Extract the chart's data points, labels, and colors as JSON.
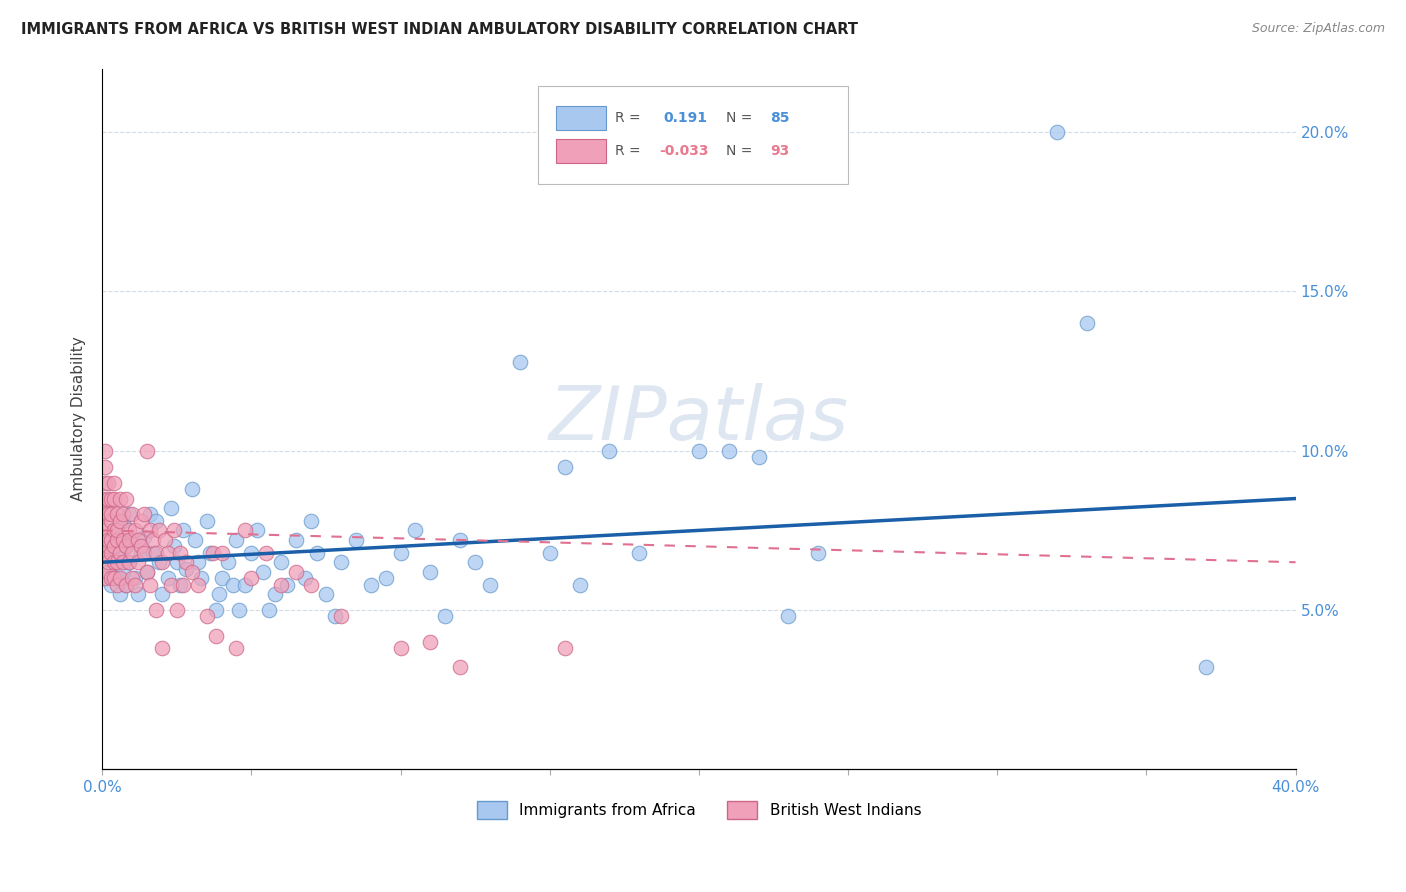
{
  "title": "IMMIGRANTS FROM AFRICA VS BRITISH WEST INDIAN AMBULATORY DISABILITY CORRELATION CHART",
  "source": "Source: ZipAtlas.com",
  "ylabel": "Ambulatory Disability",
  "xlim": [
    0,
    0.4
  ],
  "ylim": [
    0,
    0.22
  ],
  "xticks": [
    0.0,
    0.05,
    0.1,
    0.15,
    0.2,
    0.25,
    0.3,
    0.35,
    0.4
  ],
  "yticks": [
    0.0,
    0.05,
    0.1,
    0.15,
    0.2
  ],
  "africa_color": "#a8c8f0",
  "africa_edge": "#6699cc",
  "bwi_color": "#f0a0b8",
  "bwi_edge": "#cc6688",
  "africa_line_color": "#1a5fa8",
  "bwi_line_color": "#e07090",
  "watermark": "ZIPatlas",
  "legend_label_africa": "Immigrants from Africa",
  "legend_label_bwi": "British West Indians",
  "africa_line_x0": 0.0,
  "africa_line_y0": 0.065,
  "africa_line_x1": 0.4,
  "africa_line_y1": 0.085,
  "bwi_line_x0": 0.0,
  "bwi_line_y0": 0.075,
  "bwi_line_x1": 0.4,
  "bwi_line_y1": 0.065,
  "africa_scatter": [
    [
      0.001,
      0.068
    ],
    [
      0.002,
      0.063
    ],
    [
      0.003,
      0.072
    ],
    [
      0.003,
      0.058
    ],
    [
      0.004,
      0.075
    ],
    [
      0.004,
      0.065
    ],
    [
      0.005,
      0.072
    ],
    [
      0.005,
      0.06
    ],
    [
      0.005,
      0.068
    ],
    [
      0.006,
      0.055
    ],
    [
      0.007,
      0.078
    ],
    [
      0.007,
      0.062
    ],
    [
      0.008,
      0.07
    ],
    [
      0.008,
      0.058
    ],
    [
      0.009,
      0.08
    ],
    [
      0.009,
      0.065
    ],
    [
      0.01,
      0.072
    ],
    [
      0.011,
      0.06
    ],
    [
      0.012,
      0.055
    ],
    [
      0.013,
      0.068
    ],
    [
      0.014,
      0.073
    ],
    [
      0.015,
      0.062
    ],
    [
      0.016,
      0.08
    ],
    [
      0.017,
      0.068
    ],
    [
      0.018,
      0.078
    ],
    [
      0.019,
      0.065
    ],
    [
      0.02,
      0.055
    ],
    [
      0.022,
      0.06
    ],
    [
      0.023,
      0.082
    ],
    [
      0.024,
      0.07
    ],
    [
      0.025,
      0.065
    ],
    [
      0.026,
      0.058
    ],
    [
      0.027,
      0.075
    ],
    [
      0.028,
      0.063
    ],
    [
      0.03,
      0.088
    ],
    [
      0.031,
      0.072
    ],
    [
      0.032,
      0.065
    ],
    [
      0.033,
      0.06
    ],
    [
      0.035,
      0.078
    ],
    [
      0.036,
      0.068
    ],
    [
      0.038,
      0.05
    ],
    [
      0.039,
      0.055
    ],
    [
      0.04,
      0.06
    ],
    [
      0.042,
      0.065
    ],
    [
      0.044,
      0.058
    ],
    [
      0.045,
      0.072
    ],
    [
      0.046,
      0.05
    ],
    [
      0.048,
      0.058
    ],
    [
      0.05,
      0.068
    ],
    [
      0.052,
      0.075
    ],
    [
      0.054,
      0.062
    ],
    [
      0.056,
      0.05
    ],
    [
      0.058,
      0.055
    ],
    [
      0.06,
      0.065
    ],
    [
      0.062,
      0.058
    ],
    [
      0.065,
      0.072
    ],
    [
      0.068,
      0.06
    ],
    [
      0.07,
      0.078
    ],
    [
      0.072,
      0.068
    ],
    [
      0.075,
      0.055
    ],
    [
      0.078,
      0.048
    ],
    [
      0.08,
      0.065
    ],
    [
      0.085,
      0.072
    ],
    [
      0.09,
      0.058
    ],
    [
      0.095,
      0.06
    ],
    [
      0.1,
      0.068
    ],
    [
      0.105,
      0.075
    ],
    [
      0.11,
      0.062
    ],
    [
      0.115,
      0.048
    ],
    [
      0.12,
      0.072
    ],
    [
      0.125,
      0.065
    ],
    [
      0.13,
      0.058
    ],
    [
      0.14,
      0.128
    ],
    [
      0.15,
      0.068
    ],
    [
      0.155,
      0.095
    ],
    [
      0.16,
      0.058
    ],
    [
      0.17,
      0.1
    ],
    [
      0.18,
      0.068
    ],
    [
      0.2,
      0.1
    ],
    [
      0.21,
      0.1
    ],
    [
      0.22,
      0.098
    ],
    [
      0.23,
      0.048
    ],
    [
      0.24,
      0.068
    ],
    [
      0.32,
      0.2
    ],
    [
      0.33,
      0.14
    ],
    [
      0.37,
      0.032
    ]
  ],
  "bwi_scatter": [
    [
      0.0,
      0.075
    ],
    [
      0.0,
      0.085
    ],
    [
      0.001,
      0.068
    ],
    [
      0.001,
      0.095
    ],
    [
      0.001,
      0.1
    ],
    [
      0.001,
      0.08
    ],
    [
      0.001,
      0.09
    ],
    [
      0.001,
      0.068
    ],
    [
      0.001,
      0.075
    ],
    [
      0.001,
      0.06
    ],
    [
      0.002,
      0.085
    ],
    [
      0.002,
      0.07
    ],
    [
      0.002,
      0.08
    ],
    [
      0.002,
      0.062
    ],
    [
      0.002,
      0.09
    ],
    [
      0.002,
      0.072
    ],
    [
      0.002,
      0.065
    ],
    [
      0.003,
      0.078
    ],
    [
      0.003,
      0.068
    ],
    [
      0.003,
      0.085
    ],
    [
      0.003,
      0.072
    ],
    [
      0.003,
      0.06
    ],
    [
      0.003,
      0.08
    ],
    [
      0.004,
      0.075
    ],
    [
      0.004,
      0.065
    ],
    [
      0.004,
      0.085
    ],
    [
      0.004,
      0.07
    ],
    [
      0.004,
      0.06
    ],
    [
      0.004,
      0.09
    ],
    [
      0.005,
      0.072
    ],
    [
      0.005,
      0.08
    ],
    [
      0.005,
      0.065
    ],
    [
      0.005,
      0.058
    ],
    [
      0.005,
      0.075
    ],
    [
      0.006,
      0.078
    ],
    [
      0.006,
      0.068
    ],
    [
      0.006,
      0.085
    ],
    [
      0.006,
      0.06
    ],
    [
      0.007,
      0.072
    ],
    [
      0.007,
      0.065
    ],
    [
      0.007,
      0.08
    ],
    [
      0.008,
      0.07
    ],
    [
      0.008,
      0.085
    ],
    [
      0.008,
      0.058
    ],
    [
      0.009,
      0.075
    ],
    [
      0.009,
      0.065
    ],
    [
      0.009,
      0.072
    ],
    [
      0.01,
      0.068
    ],
    [
      0.01,
      0.08
    ],
    [
      0.01,
      0.06
    ],
    [
      0.011,
      0.075
    ],
    [
      0.011,
      0.058
    ],
    [
      0.012,
      0.072
    ],
    [
      0.012,
      0.065
    ],
    [
      0.013,
      0.078
    ],
    [
      0.013,
      0.07
    ],
    [
      0.014,
      0.068
    ],
    [
      0.014,
      0.08
    ],
    [
      0.015,
      0.1
    ],
    [
      0.015,
      0.062
    ],
    [
      0.016,
      0.075
    ],
    [
      0.016,
      0.058
    ],
    [
      0.017,
      0.072
    ],
    [
      0.018,
      0.068
    ],
    [
      0.018,
      0.05
    ],
    [
      0.019,
      0.075
    ],
    [
      0.02,
      0.065
    ],
    [
      0.02,
      0.038
    ],
    [
      0.021,
      0.072
    ],
    [
      0.022,
      0.068
    ],
    [
      0.023,
      0.058
    ],
    [
      0.024,
      0.075
    ],
    [
      0.025,
      0.05
    ],
    [
      0.026,
      0.068
    ],
    [
      0.027,
      0.058
    ],
    [
      0.028,
      0.065
    ],
    [
      0.03,
      0.062
    ],
    [
      0.032,
      0.058
    ],
    [
      0.035,
      0.048
    ],
    [
      0.037,
      0.068
    ],
    [
      0.038,
      0.042
    ],
    [
      0.04,
      0.068
    ],
    [
      0.045,
      0.038
    ],
    [
      0.048,
      0.075
    ],
    [
      0.05,
      0.06
    ],
    [
      0.055,
      0.068
    ],
    [
      0.06,
      0.058
    ],
    [
      0.065,
      0.062
    ],
    [
      0.07,
      0.058
    ],
    [
      0.08,
      0.048
    ],
    [
      0.1,
      0.038
    ],
    [
      0.11,
      0.04
    ],
    [
      0.12,
      0.032
    ],
    [
      0.155,
      0.038
    ]
  ]
}
